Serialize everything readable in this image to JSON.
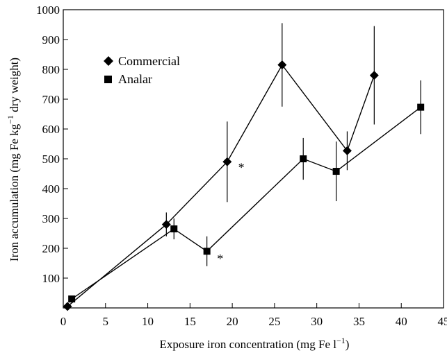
{
  "chart_data": {
    "type": "line",
    "title": "",
    "xlabel": "Exposure iron concentration (mg Fe l",
    "xlabel_sup": "−1",
    "xlabel_suffix": ")",
    "ylabel": "Iron accumulation (mg Fe kg",
    "ylabel_sup": "−1",
    "ylabel_suffix": " dry weight)",
    "xlim": [
      0,
      45
    ],
    "ylim": [
      0,
      1000
    ],
    "xticks": [
      0,
      5,
      10,
      15,
      20,
      25,
      30,
      35,
      40,
      45
    ],
    "yticks": [
      100,
      200,
      300,
      400,
      500,
      600,
      700,
      800,
      900,
      1000
    ],
    "grid": false,
    "legend_position": "top-left",
    "series": [
      {
        "name": "Commercial",
        "marker": "diamond",
        "color": "#000000",
        "points": [
          {
            "x": 0.5,
            "y": 5,
            "err": 0
          },
          {
            "x": 12.2,
            "y": 280,
            "err": 40
          },
          {
            "x": 19.4,
            "y": 490,
            "err": 135
          },
          {
            "x": 25.9,
            "y": 815,
            "err": 140
          },
          {
            "x": 33.6,
            "y": 527,
            "err": 65
          },
          {
            "x": 36.8,
            "y": 780,
            "err": 165
          }
        ]
      },
      {
        "name": "Analar",
        "marker": "square",
        "color": "#000000",
        "points": [
          {
            "x": 1.0,
            "y": 30,
            "err": 0
          },
          {
            "x": 13.1,
            "y": 265,
            "err": 35
          },
          {
            "x": 17.0,
            "y": 190,
            "err": 50
          },
          {
            "x": 28.4,
            "y": 500,
            "err": 70
          },
          {
            "x": 32.3,
            "y": 458,
            "err": 100
          },
          {
            "x": 42.3,
            "y": 673,
            "err": 90
          }
        ]
      }
    ],
    "annotations": [
      {
        "text": "*",
        "x": 20.7,
        "y": 480
      },
      {
        "text": "*",
        "x": 18.2,
        "y": 175
      }
    ]
  }
}
